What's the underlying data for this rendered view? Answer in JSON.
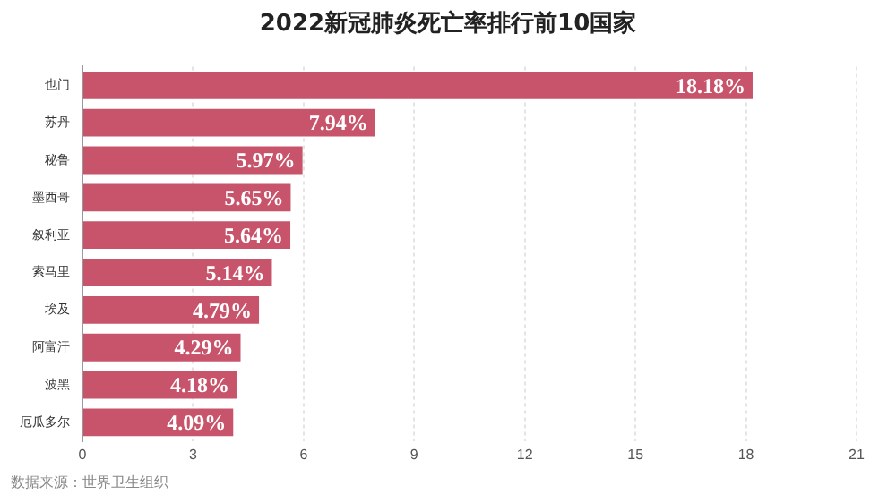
{
  "chart_data": {
    "type": "bar",
    "orientation": "horizontal",
    "title": "2022新冠肺炎死亡率排行前10国家",
    "categories": [
      "也门",
      "苏丹",
      "秘鲁",
      "墨西哥",
      "叙利亚",
      "索马里",
      "埃及",
      "阿富汗",
      "波黑",
      "厄瓜多尔"
    ],
    "values": [
      18.18,
      7.94,
      5.97,
      5.65,
      5.64,
      5.14,
      4.79,
      4.29,
      4.18,
      4.09
    ],
    "value_labels": [
      "18.18%",
      "7.94%",
      "5.97%",
      "5.65%",
      "5.64%",
      "5.14%",
      "4.79%",
      "4.29%",
      "4.18%",
      "4.09%"
    ],
    "color": "#c8546b",
    "xlim": [
      0,
      21
    ],
    "xticks": [
      0,
      3,
      6,
      9,
      12,
      15,
      18,
      21
    ],
    "grid": "x",
    "annotations": [
      "数据来源：世界卫生组织"
    ]
  }
}
